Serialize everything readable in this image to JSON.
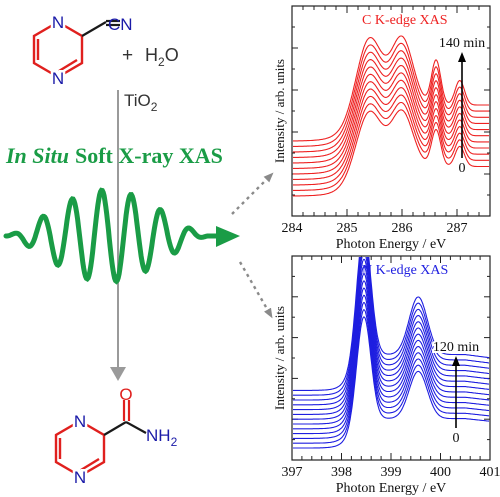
{
  "reaction": {
    "plus": "+",
    "water": "H",
    "water_sub": "2",
    "water_tail": "O",
    "catalyst": "TiO",
    "catalyst_sub": "2",
    "reactant_n_label": "N",
    "reactant_cn_label": "CN",
    "product_o_label": "O",
    "product_n_label": "N",
    "product_nh2": "NH",
    "product_nh2_sub": "2"
  },
  "headline": {
    "italic_part": "In Situ",
    "rest": "Soft X-ray XAS",
    "color": "#1a9c46"
  },
  "colors": {
    "ring": "#e0201e",
    "nitrogen": "#1a1aa8",
    "carbon_panel": "#ee2222",
    "nitrogen_panel": "#1e1ee0",
    "arrow_gray": "#999999"
  },
  "chart_data": [
    {
      "type": "line",
      "title": "C K-edge XAS",
      "xlabel": "Photon Energy / eV",
      "ylabel": "Intensity / arb. units",
      "xlim": [
        284,
        287.6
      ],
      "xticks": [
        "284",
        "285",
        "286",
        "287"
      ],
      "annotation_top": "140 min",
      "annotation_bottom": "0",
      "n_series": 11,
      "peaks": [
        {
          "x": 285.4,
          "height": 1.0,
          "width": 0.32
        },
        {
          "x": 286.0,
          "height": 0.93,
          "width": 0.28
        },
        {
          "x": 286.62,
          "height": 0.62,
          "width": 0.12
        },
        {
          "x": 287.05,
          "height": 0.34,
          "width": 0.12
        }
      ]
    },
    {
      "type": "line",
      "title": "N K-edge XAS",
      "xlabel": "Photon Energy / eV",
      "ylabel": "Intensity / arb. units",
      "xlim": [
        397,
        401
      ],
      "xticks": [
        "397",
        "398",
        "399",
        "400",
        "401"
      ],
      "annotation_top": "120 min",
      "annotation_bottom": "0",
      "n_series": 13,
      "peaks": [
        {
          "x": 398.45,
          "height": 1.0,
          "width": 0.2
        },
        {
          "x": 399.55,
          "height": 0.45,
          "width": 0.26
        }
      ]
    }
  ]
}
